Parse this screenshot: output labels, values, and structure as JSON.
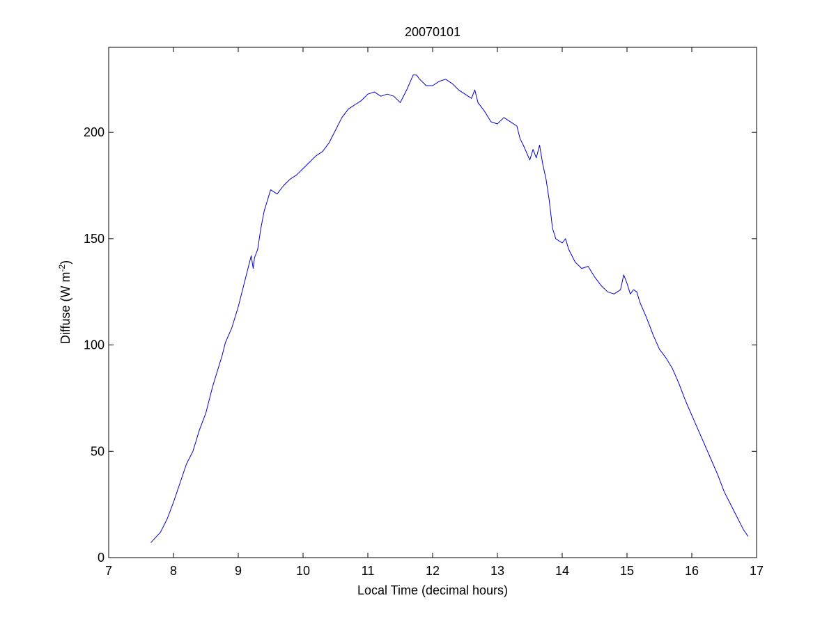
{
  "chart_data": {
    "type": "line",
    "title": "20070101",
    "xlabel": "Local Time (decimal hours)",
    "ylabel_main": "Diffuse (W m",
    "ylabel_sup": "-2",
    "ylabel_close": ")",
    "xlim": [
      7,
      17
    ],
    "ylim": [
      0,
      240
    ],
    "xticks": [
      7,
      8,
      9,
      10,
      11,
      12,
      13,
      14,
      15,
      16,
      17
    ],
    "xtick_labels": [
      "7",
      "8",
      "9",
      "10",
      "11",
      "12",
      "13",
      "14",
      "15",
      "16",
      "17"
    ],
    "yticks": [
      0,
      50,
      100,
      150,
      200
    ],
    "ytick_labels": [
      "0",
      "50",
      "100",
      "150",
      "200"
    ],
    "grid": false,
    "series": [
      {
        "color": "#0000cc",
        "x": [
          7.65,
          7.8,
          7.9,
          8.0,
          8.1,
          8.2,
          8.3,
          8.4,
          8.5,
          8.6,
          8.7,
          8.75,
          8.8,
          8.9,
          9.0,
          9.1,
          9.2,
          9.23,
          9.25,
          9.3,
          9.35,
          9.4,
          9.45,
          9.5,
          9.55,
          9.6,
          9.7,
          9.8,
          9.9,
          10.0,
          10.1,
          10.2,
          10.3,
          10.4,
          10.5,
          10.6,
          10.7,
          10.8,
          10.9,
          11.0,
          11.1,
          11.2,
          11.3,
          11.4,
          11.5,
          11.6,
          11.7,
          11.75,
          11.8,
          11.9,
          12.0,
          12.1,
          12.2,
          12.3,
          12.4,
          12.5,
          12.6,
          12.65,
          12.7,
          12.8,
          12.9,
          13.0,
          13.1,
          13.2,
          13.3,
          13.35,
          13.4,
          13.5,
          13.55,
          13.6,
          13.65,
          13.7,
          13.75,
          13.8,
          13.85,
          13.9,
          14.0,
          14.05,
          14.1,
          14.2,
          14.3,
          14.4,
          14.5,
          14.6,
          14.7,
          14.8,
          14.9,
          14.95,
          15.0,
          15.05,
          15.1,
          15.15,
          15.2,
          15.3,
          15.4,
          15.5,
          15.6,
          15.7,
          15.8,
          15.9,
          16.0,
          16.1,
          16.2,
          16.3,
          16.4,
          16.5,
          16.6,
          16.7,
          16.8,
          16.87
        ],
        "y": [
          7,
          12,
          18,
          26,
          35,
          44,
          50,
          60,
          68,
          80,
          90,
          95,
          101,
          108,
          118,
          130,
          142,
          136,
          141,
          145,
          155,
          163,
          168,
          173,
          172,
          171,
          175,
          178,
          180,
          183,
          186,
          189,
          191,
          195,
          201,
          207,
          211,
          213,
          215,
          218,
          219,
          217,
          218,
          217,
          214,
          220,
          227,
          227,
          225,
          222,
          222,
          224,
          225,
          223,
          220,
          218,
          216,
          220,
          214,
          210,
          205,
          204,
          207,
          205,
          203,
          197,
          194,
          187,
          192,
          188,
          194,
          185,
          178,
          168,
          155,
          150,
          148,
          150,
          145,
          139,
          136,
          137,
          132,
          128,
          125,
          124,
          126,
          133,
          129,
          124,
          126,
          125,
          120,
          113,
          105,
          98,
          94,
          89,
          82,
          74,
          67,
          60,
          53,
          46,
          39,
          31,
          25,
          19,
          13,
          10
        ]
      }
    ]
  }
}
